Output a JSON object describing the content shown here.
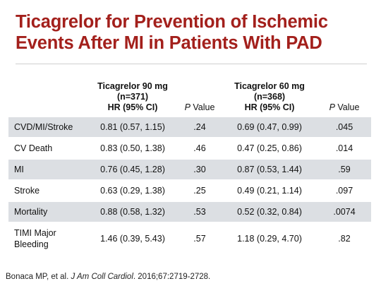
{
  "title": {
    "line1": "Ticagrelor for Prevention of Ischemic",
    "line2": "Events After MI in Patients With PAD"
  },
  "table": {
    "headers": {
      "group1": {
        "name": "Ticagrelor 90 mg",
        "n": "(n=371)",
        "hr": "HR (95% CI)"
      },
      "p1": {
        "p": "P",
        "value": "Value"
      },
      "group2": {
        "name": "Ticagrelor 60 mg",
        "n": "(n=368)",
        "hr": "HR (95% CI)"
      },
      "p2": {
        "p": "P",
        "value": "Value"
      }
    },
    "rows": [
      {
        "label": "CVD/MI/Stroke",
        "hr90": "0.81 (0.57, 1.15)",
        "p90": ".24",
        "hr60": "0.69 (0.47, 0.99)",
        "p60": ".045"
      },
      {
        "label": "CV Death",
        "hr90": "0.83 (0.50, 1.38)",
        "p90": ".46",
        "hr60": "0.47 (0.25, 0.86)",
        "p60": ".014"
      },
      {
        "label": "MI",
        "hr90": "0.76 (0.45, 1.28)",
        "p90": ".30",
        "hr60": "0.87 (0.53, 1.44)",
        "p60": ".59"
      },
      {
        "label": "Stroke",
        "hr90": "0.63 (0.29, 1.38)",
        "p90": ".25",
        "hr60": "0.49 (0.21, 1.14)",
        "p60": ".097"
      },
      {
        "label": "Mortality",
        "hr90": "0.88 (0.58, 1.32)",
        "p90": ".53",
        "hr60": "0.52 (0.32, 0.84)",
        "p60": ".0074"
      },
      {
        "label_line1": "TIMI Major",
        "label_line2": "Bleeding",
        "hr90": "1.46 (0.39, 5.43)",
        "p90": ".57",
        "hr60": "1.18 (0.29, 4.70)",
        "p60": ".82"
      }
    ]
  },
  "footnote": {
    "authors": "Bonaca MP, et al. ",
    "journal": "J Am Coll Cardiol",
    "details": ". 2016;67:2719-2728."
  },
  "colors": {
    "title": "#a3201c",
    "row_shade": "#dcdfe3"
  }
}
